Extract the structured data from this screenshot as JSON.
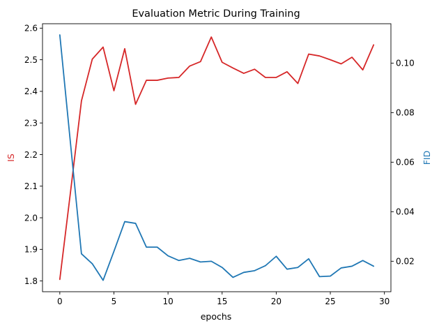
{
  "chart_data": {
    "type": "line",
    "title": "Evaluation Metric During Training",
    "xlabel": "epochs",
    "ylabel_left": "IS",
    "ylabel_right": "FID",
    "xlim": [
      -1.6,
      30.6
    ],
    "ylim_left": [
      1.766,
      2.614
    ],
    "ylim_right": [
      0.0077,
      0.1159
    ],
    "xticks": [
      0,
      5,
      10,
      15,
      20,
      25,
      30
    ],
    "yticks_left": [
      1.8,
      1.9,
      2.0,
      2.1,
      2.2,
      2.3,
      2.4,
      2.5,
      2.6
    ],
    "yticks_right": [
      0.02,
      0.04,
      0.06,
      0.08,
      0.1
    ],
    "grid": false,
    "colors": {
      "IS": "#d62728",
      "FID": "#1f77b4",
      "axes": "#000000"
    },
    "x": [
      0,
      1,
      2,
      3,
      4,
      5,
      6,
      7,
      8,
      9,
      10,
      11,
      12,
      13,
      14,
      15,
      16,
      17,
      18,
      19,
      20,
      21,
      22,
      23,
      24,
      25,
      26,
      27,
      28,
      29
    ],
    "series": [
      {
        "key": "IS",
        "axis": "left",
        "color": "#d62728",
        "values": [
          1.805,
          2.085,
          2.37,
          2.502,
          2.54,
          2.402,
          2.535,
          2.359,
          2.435,
          2.435,
          2.442,
          2.444,
          2.48,
          2.494,
          2.572,
          2.492,
          2.474,
          2.457,
          2.47,
          2.444,
          2.444,
          2.462,
          2.425,
          2.518,
          2.512,
          2.5,
          2.487,
          2.508,
          2.468,
          2.547
        ]
      },
      {
        "key": "FID",
        "axis": "right",
        "color": "#1f77b4",
        "values": [
          0.1114,
          0.067,
          0.023,
          0.019,
          0.0123,
          0.024,
          0.036,
          0.0353,
          0.0257,
          0.0257,
          0.0222,
          0.0203,
          0.0212,
          0.0197,
          0.02,
          0.0175,
          0.0135,
          0.0155,
          0.0162,
          0.0182,
          0.022,
          0.0168,
          0.0175,
          0.021,
          0.0138,
          0.014,
          0.0173,
          0.018,
          0.0203,
          0.018
        ]
      }
    ]
  }
}
